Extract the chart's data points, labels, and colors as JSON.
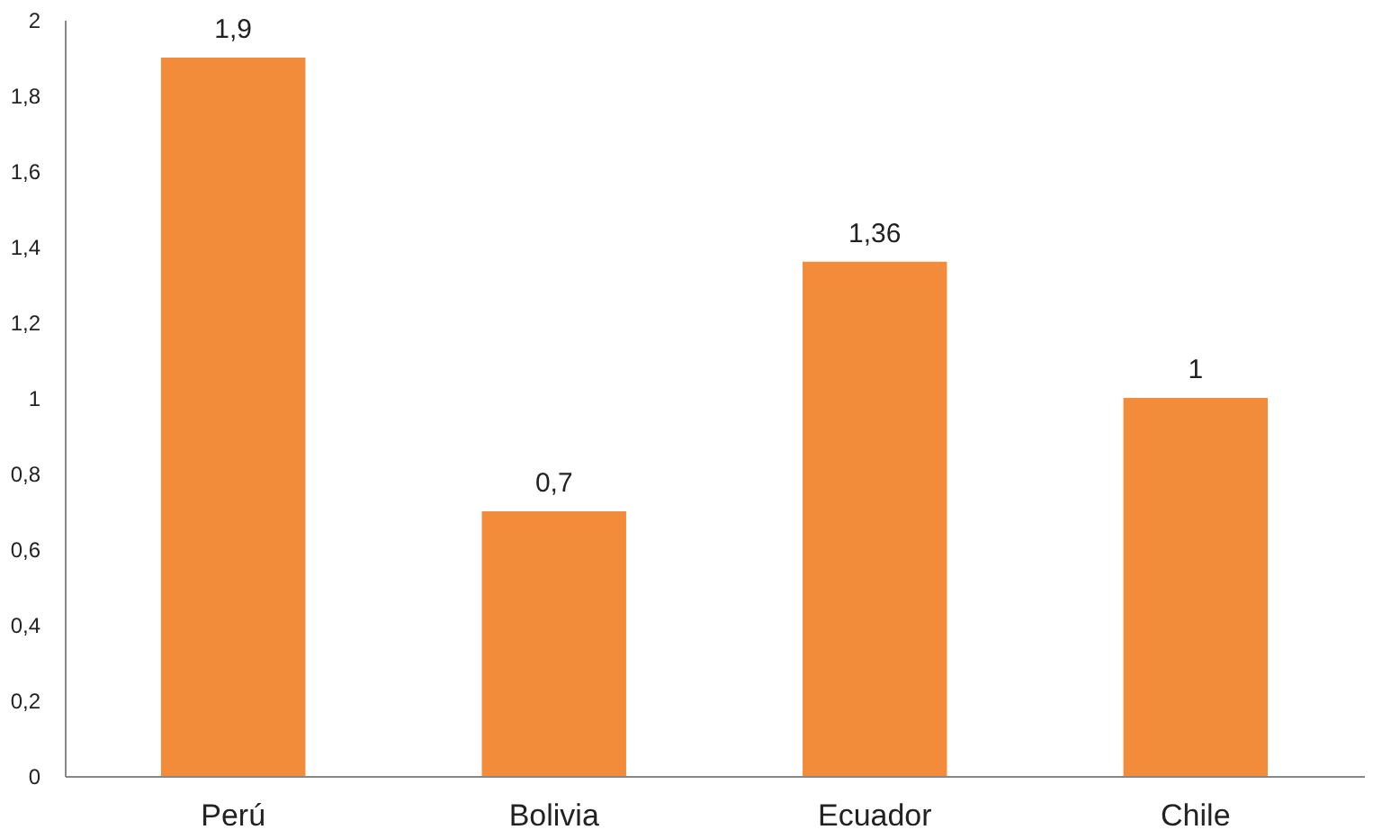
{
  "chart_data": {
    "type": "bar",
    "categories": [
      "Perú",
      "Bolivia",
      "Ecuador",
      "Chile"
    ],
    "values": [
      1.9,
      0.7,
      1.36,
      1
    ],
    "value_labels": [
      "1,9",
      "0,7",
      "1,36",
      "1"
    ],
    "color": "#f28c3a",
    "ylim": [
      0,
      2
    ],
    "yticks": [
      0,
      {
        "value": 0.2,
        "label": "0,2"
      },
      {
        "value": 0.4,
        "label": "0,4"
      },
      {
        "value": 0.6,
        "label": "0,6"
      },
      {
        "value": 0.8,
        "label": "0,8"
      },
      1,
      {
        "value": 1.2,
        "label": "1,2"
      },
      {
        "value": 1.4,
        "label": "1,4"
      },
      {
        "value": 1.6,
        "label": "1,6"
      },
      {
        "value": 1.8,
        "label": "1,8"
      },
      2
    ],
    "grid": false
  }
}
